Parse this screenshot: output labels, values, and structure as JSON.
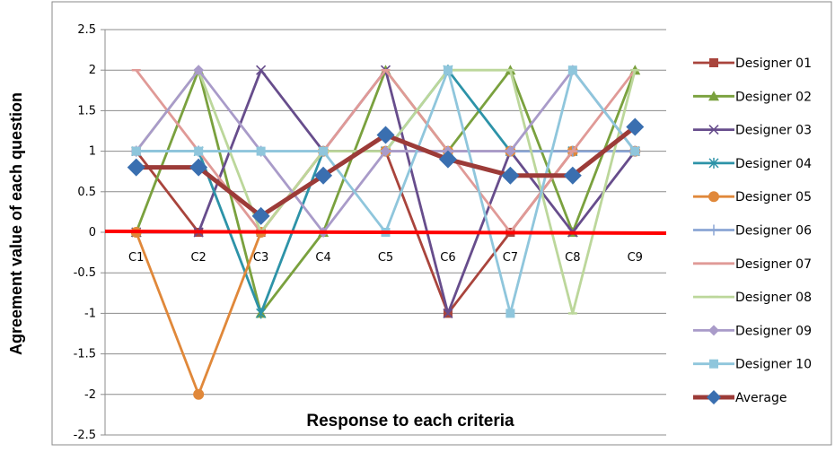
{
  "chart_data": {
    "type": "line",
    "xlabel": "Response to each criteria",
    "ylabel": "Agreement value of each question",
    "categories": [
      "C1",
      "C2",
      "C3",
      "C4",
      "C5",
      "C6",
      "C7",
      "C8",
      "C9"
    ],
    "ylim": [
      -2.5,
      2.5
    ],
    "ytick_step": 0.5,
    "yticks": [
      "2.5",
      "2",
      "1.5",
      "1",
      "0.5",
      "0",
      "-0.5",
      "-1",
      "-1.5",
      "-2",
      "-2.5"
    ],
    "grid": true,
    "legend_position": "right",
    "series": [
      {
        "name": "Designer 01",
        "values": [
          1,
          0,
          0,
          1,
          1,
          -1,
          0,
          1,
          1
        ],
        "color": "#a9443c",
        "marker": "square"
      },
      {
        "name": "Designer 02",
        "values": [
          0,
          2,
          -1,
          0,
          2,
          1,
          2,
          0,
          2
        ],
        "color": "#7aa13e",
        "marker": "triangle"
      },
      {
        "name": "Designer 03",
        "values": [
          0,
          0,
          2,
          1,
          2,
          -1,
          1,
          0,
          1
        ],
        "color": "#674d8c",
        "marker": "x"
      },
      {
        "name": "Designer 04",
        "values": [
          1,
          1,
          -1,
          1,
          1,
          2,
          1,
          1,
          1
        ],
        "color": "#2d93a8",
        "marker": "asterisk"
      },
      {
        "name": "Designer 05",
        "values": [
          0,
          -2,
          0,
          1,
          1,
          1,
          1,
          1,
          1
        ],
        "color": "#e0883a",
        "marker": "circle"
      },
      {
        "name": "Designer 06",
        "values": [
          1,
          1,
          1,
          1,
          1,
          1,
          1,
          1,
          1
        ],
        "color": "#8aa5d4",
        "marker": "plus"
      },
      {
        "name": "Designer 07",
        "values": [
          2,
          1,
          0,
          1,
          2,
          1,
          0,
          1,
          2
        ],
        "color": "#e09a97",
        "marker": "dash"
      },
      {
        "name": "Designer 08",
        "values": [
          1,
          2,
          0,
          1,
          1,
          2,
          2,
          -1,
          2
        ],
        "color": "#bcd79b",
        "marker": "dash"
      },
      {
        "name": "Designer 09",
        "values": [
          1,
          2,
          1,
          0,
          1,
          1,
          1,
          2,
          1
        ],
        "color": "#a99bc9",
        "marker": "diamond"
      },
      {
        "name": "Designer 10",
        "values": [
          1,
          1,
          1,
          1,
          0,
          2,
          -1,
          2,
          1
        ],
        "color": "#8fc6dc",
        "marker": "square"
      },
      {
        "name": "Average",
        "values": [
          0.8,
          0.8,
          0.2,
          0.7,
          1.2,
          0.9,
          0.7,
          0.7,
          1.3
        ],
        "color": "#9c3b38",
        "marker": "diamond-blue",
        "marker_color": "#3a6fb0"
      }
    ],
    "zero_line_color": "#ff0000"
  }
}
